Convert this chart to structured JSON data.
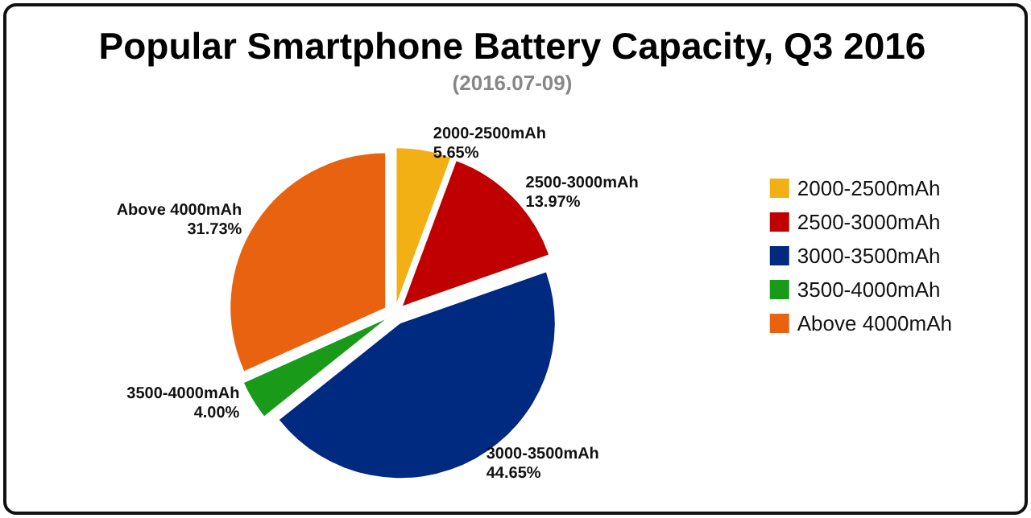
{
  "chart_data": {
    "type": "pie",
    "title": "Popular Smartphone Battery Capacity, Q3 2016",
    "subtitle": "(2016.07-09)",
    "categories": [
      "2000-2500mAh",
      "2500-3000mAh",
      "3000-3500mAh",
      "3500-4000mAh",
      "Above 4000mAh"
    ],
    "values": [
      5.65,
      13.97,
      44.65,
      4.0,
      31.73
    ],
    "value_labels": [
      "5.65%",
      "13.97%",
      "44.65%",
      "4.00%",
      "31.73%"
    ],
    "colors": [
      "#f3b014",
      "#c00000",
      "#002a80",
      "#199a19",
      "#e8620f"
    ],
    "legend": "right"
  }
}
